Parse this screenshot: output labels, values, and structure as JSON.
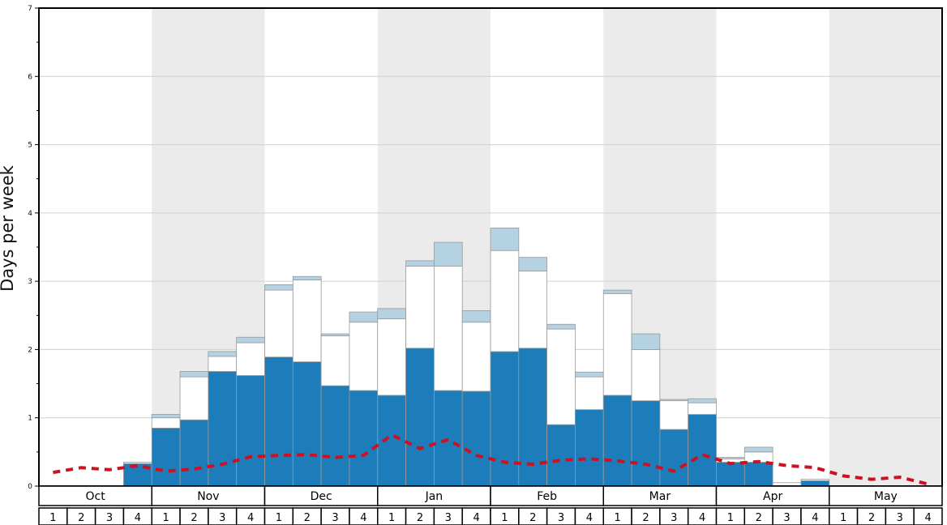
{
  "chart_data": {
    "type": "bar",
    "title": "",
    "ylabel": "Days per week",
    "ylim": [
      0,
      7
    ],
    "yticks": [
      0,
      1,
      2,
      3,
      4,
      5,
      6,
      7
    ],
    "grid": true,
    "legend_position": "none",
    "months": [
      "Oct",
      "Nov",
      "Dec",
      "Jan",
      "Feb",
      "Mar",
      "Apr",
      "May"
    ],
    "week_labels": [
      "1",
      "2",
      "3",
      "4"
    ],
    "shaded_months": [
      1,
      3,
      5,
      7
    ],
    "colors": {
      "dark_blue_bar": "#1d7dba",
      "white_bar": "#ffffff",
      "light_blue_bar": "#b5d2e2",
      "red_dashed_line": "#cc1122",
      "month_band": "#ebebeb",
      "gridline": "#d0d0d0",
      "bar_border": "#999999",
      "frame": "#000000"
    },
    "stacked_series": [
      {
        "name": "dark-blue-days",
        "color": "#1d7dba",
        "values": [
          0,
          0,
          0,
          0.33,
          0.85,
          0.97,
          1.68,
          1.62,
          1.89,
          1.82,
          1.47,
          1.4,
          1.33,
          2.02,
          1.4,
          1.39,
          1.97,
          2.02,
          0.9,
          1.12,
          1.33,
          1.25,
          0.83,
          1.05,
          0.35,
          0.35,
          0.0,
          0.08,
          0,
          0,
          0,
          0
        ]
      },
      {
        "name": "white-days",
        "color": "#ffffff",
        "values": [
          0,
          0,
          0,
          0.02,
          0.15,
          0.63,
          0.22,
          0.48,
          0.98,
          1.2,
          0.73,
          1.0,
          1.12,
          1.2,
          1.82,
          1.01,
          1.48,
          1.13,
          1.4,
          0.48,
          1.49,
          0.75,
          0.42,
          0.17,
          0.05,
          0.15,
          0.05,
          0.02,
          0,
          0,
          0,
          0
        ]
      },
      {
        "name": "light-blue-days",
        "color": "#b5d2e2",
        "values": [
          0,
          0,
          0,
          0,
          0.05,
          0.08,
          0.07,
          0.08,
          0.08,
          0.05,
          0.03,
          0.15,
          0.15,
          0.08,
          0.35,
          0.17,
          0.33,
          0.2,
          0.07,
          0.07,
          0.05,
          0.23,
          0.02,
          0.06,
          0.02,
          0.07,
          0,
          0,
          0,
          0,
          0,
          0
        ]
      }
    ],
    "line_series": {
      "name": "red-dashed-average",
      "color": "#cc1122",
      "dash": [
        9,
        7
      ],
      "width": 4,
      "values": [
        0.2,
        0.27,
        0.24,
        0.3,
        0.22,
        0.25,
        0.32,
        0.43,
        0.45,
        0.46,
        0.42,
        0.45,
        0.75,
        0.55,
        0.68,
        0.45,
        0.35,
        0.32,
        0.38,
        0.4,
        0.37,
        0.32,
        0.22,
        0.46,
        0.33,
        0.36,
        0.3,
        0.27,
        0.15,
        0.1,
        0.13,
        0.03
      ]
    }
  }
}
